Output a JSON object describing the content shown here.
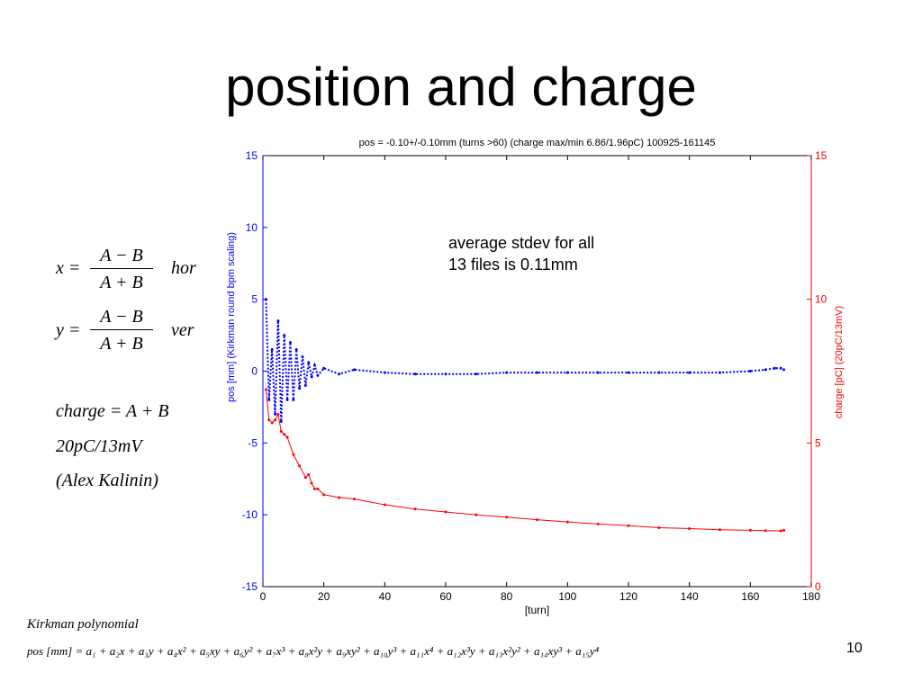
{
  "slide": {
    "title": "position and charge",
    "page_number": "10"
  },
  "formulas": {
    "x_lhs": "x =",
    "x_num": "A − B",
    "x_den": "A + B",
    "x_tag": "hor",
    "y_lhs": "y =",
    "y_num": "A − B",
    "y_den": "A + B",
    "y_tag": "ver",
    "charge": "charge = A + B",
    "scale": "20pC/13mV",
    "credit": "(Alex Kalinin)"
  },
  "kirkman": {
    "title": "Kirkman polynomial",
    "polynomial": "pos [mm] = a₁ + a₂x + a₃y + a₄x² + a₅xy + a₆y² + a₇x³ + a₈x²y + a₉xy² + a₁₀y³ + a₁₁x⁴ + a₁₂x³y + a₁₃x²y² + a₁₄xy³ + a₁₅y⁴"
  },
  "chart_data": {
    "type": "line",
    "title": "pos = -0.10+/-0.10mm  (turns >60)    (charge max/min 6.86/1.96pC)    100925-161145",
    "xlabel": "[turn]",
    "ylabel_left": "pos [mm]  (Kirkman round bpm scaling)",
    "ylabel_right": "charge [pC]  (20pC/13mV)",
    "annotation": [
      "average stdev for all",
      "13 files is 0.11mm"
    ],
    "xlim": [
      0,
      180
    ],
    "ylim_left": [
      -15,
      15
    ],
    "ylim_right": [
      0,
      15
    ],
    "x_ticks": [
      "0",
      "20",
      "40",
      "60",
      "80",
      "100",
      "120",
      "140",
      "160",
      "180"
    ],
    "y_ticks_left": [
      "-15",
      "-10",
      "-5",
      "0",
      "5",
      "10",
      "15"
    ],
    "y_ticks_right": [
      "0",
      "5",
      "10",
      "15"
    ],
    "colors": {
      "pos": "#0000ff",
      "charge": "#ff0000",
      "left_axis": "#0000ff",
      "right_axis": "#ff0000"
    },
    "series": [
      {
        "axis": "left",
        "x": [
          1,
          2,
          3,
          4,
          5,
          6,
          7,
          8,
          9,
          10,
          11,
          12,
          13,
          14,
          15,
          16,
          17,
          18,
          20,
          25,
          30,
          40,
          50,
          60,
          70,
          80,
          90,
          100,
          110,
          120,
          130,
          140,
          150,
          160,
          165,
          168,
          170,
          171
        ],
        "y": [
          5,
          -2,
          1.5,
          -3,
          3.5,
          -3.5,
          2.5,
          -2,
          2,
          -2,
          1.5,
          -1.2,
          1,
          -1,
          0.6,
          -0.4,
          0.4,
          -0.3,
          0.2,
          -0.2,
          0.1,
          -0.1,
          -0.2,
          -0.2,
          -0.2,
          -0.1,
          -0.1,
          -0.1,
          -0.1,
          -0.1,
          -0.1,
          -0.1,
          -0.1,
          0,
          0.1,
          0.2,
          0.2,
          0.1
        ]
      },
      {
        "axis": "right",
        "x": [
          1,
          2,
          3,
          4,
          5,
          6,
          7,
          8,
          10,
          12,
          14,
          15,
          16,
          17,
          18,
          20,
          25,
          30,
          40,
          50,
          60,
          70,
          80,
          90,
          100,
          110,
          120,
          130,
          140,
          150,
          160,
          165,
          170,
          171
        ],
        "y": [
          6.86,
          5.8,
          5.7,
          5.8,
          6.0,
          5.4,
          5.3,
          5.2,
          4.6,
          4.2,
          3.8,
          3.9,
          3.6,
          3.4,
          3.4,
          3.2,
          3.1,
          3.05,
          2.85,
          2.7,
          2.6,
          2.5,
          2.42,
          2.33,
          2.25,
          2.18,
          2.12,
          2.05,
          2.02,
          1.98,
          1.96,
          1.95,
          1.94,
          1.96
        ]
      }
    ]
  }
}
